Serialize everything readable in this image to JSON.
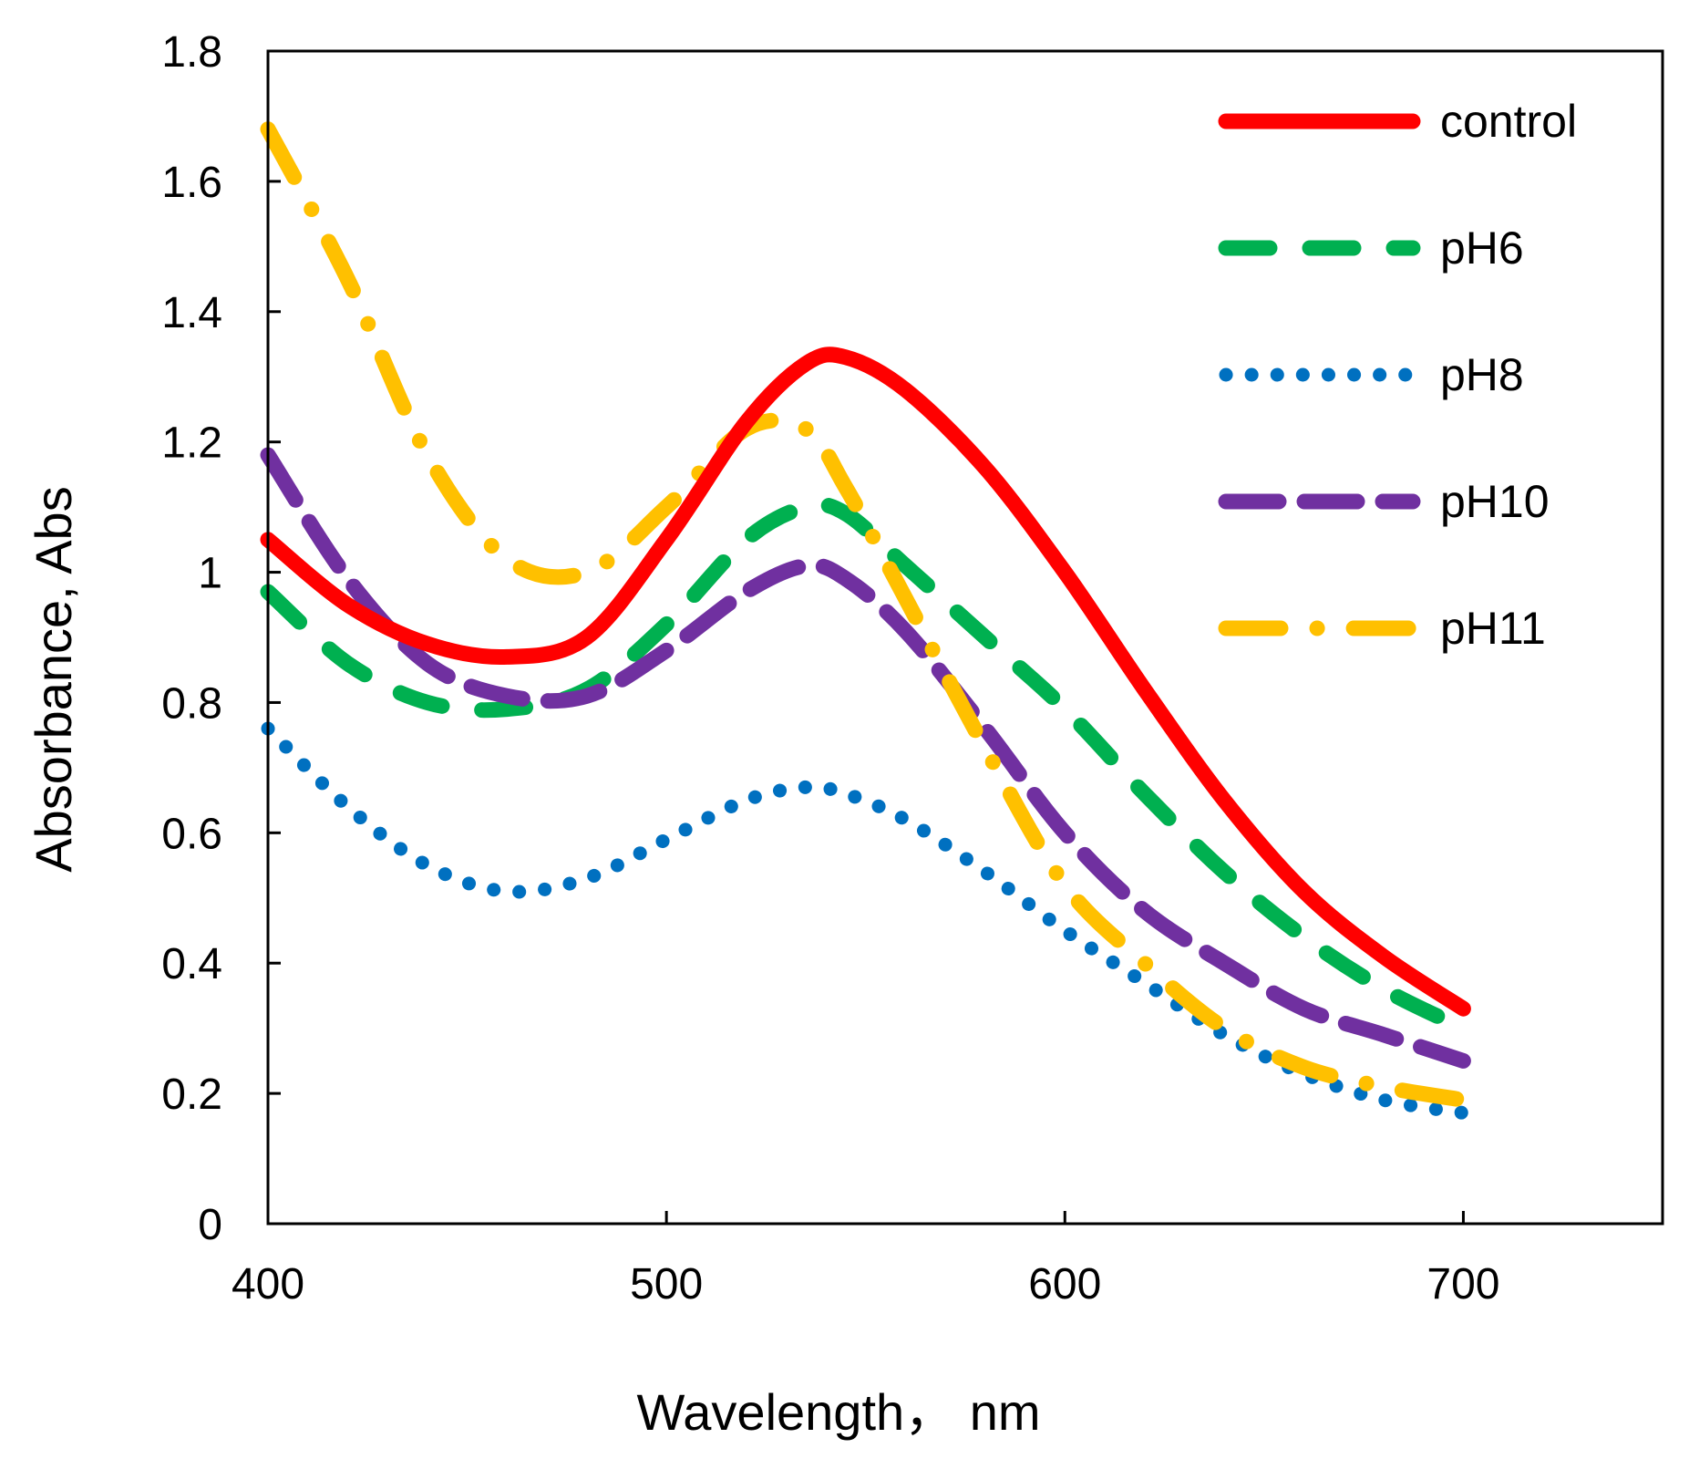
{
  "chart_data": {
    "type": "line",
    "title": "",
    "xlabel": "Wavelength， nm",
    "ylabel": "Absorbance, Abs",
    "xlim": [
      400,
      750
    ],
    "ylim": [
      0,
      1.8
    ],
    "xticks": [
      400,
      500,
      600,
      700
    ],
    "xtick_labels": [
      "400",
      "500",
      "600",
      "700"
    ],
    "yticks": [
      0,
      0.2,
      0.4,
      0.6,
      0.8,
      1.0,
      1.2,
      1.4,
      1.6,
      1.8
    ],
    "ytick_labels": [
      "0",
      "0.2",
      "0.4",
      "0.6",
      "0.8",
      "1",
      "1.2",
      "1.4",
      "1.6",
      "1.8"
    ],
    "grid": false,
    "legend_position": "top-right",
    "x": [
      400,
      420,
      440,
      460,
      480,
      500,
      520,
      535,
      545,
      560,
      580,
      600,
      620,
      640,
      660,
      680,
      700
    ],
    "series": [
      {
        "name": "control",
        "color": "#FF0000",
        "style": "solid",
        "values": [
          1.05,
          0.95,
          0.89,
          0.87,
          0.9,
          1.05,
          1.23,
          1.32,
          1.33,
          1.28,
          1.16,
          1.0,
          0.82,
          0.65,
          0.51,
          0.41,
          0.33
        ]
      },
      {
        "name": "pH6",
        "color": "#00B050",
        "style": "dash",
        "values": [
          0.97,
          0.86,
          0.8,
          0.79,
          0.82,
          0.92,
          1.05,
          1.1,
          1.09,
          1.01,
          0.9,
          0.79,
          0.66,
          0.54,
          0.44,
          0.36,
          0.3
        ]
      },
      {
        "name": "pH8",
        "color": "#0070C0",
        "style": "dot",
        "values": [
          0.76,
          0.64,
          0.55,
          0.51,
          0.53,
          0.59,
          0.65,
          0.67,
          0.66,
          0.62,
          0.54,
          0.45,
          0.37,
          0.29,
          0.23,
          0.19,
          0.17
        ]
      },
      {
        "name": "pH10",
        "color": "#7030A0",
        "style": "longdash",
        "values": [
          1.18,
          0.99,
          0.86,
          0.81,
          0.81,
          0.88,
          0.97,
          1.01,
          0.99,
          0.91,
          0.76,
          0.6,
          0.48,
          0.4,
          0.33,
          0.29,
          0.25
        ]
      },
      {
        "name": "pH11",
        "color": "#FFC000",
        "style": "dashdot",
        "values": [
          1.68,
          1.45,
          1.18,
          1.02,
          1.0,
          1.1,
          1.22,
          1.22,
          1.13,
          0.96,
          0.73,
          0.52,
          0.4,
          0.3,
          0.24,
          0.21,
          0.19
        ]
      }
    ]
  }
}
